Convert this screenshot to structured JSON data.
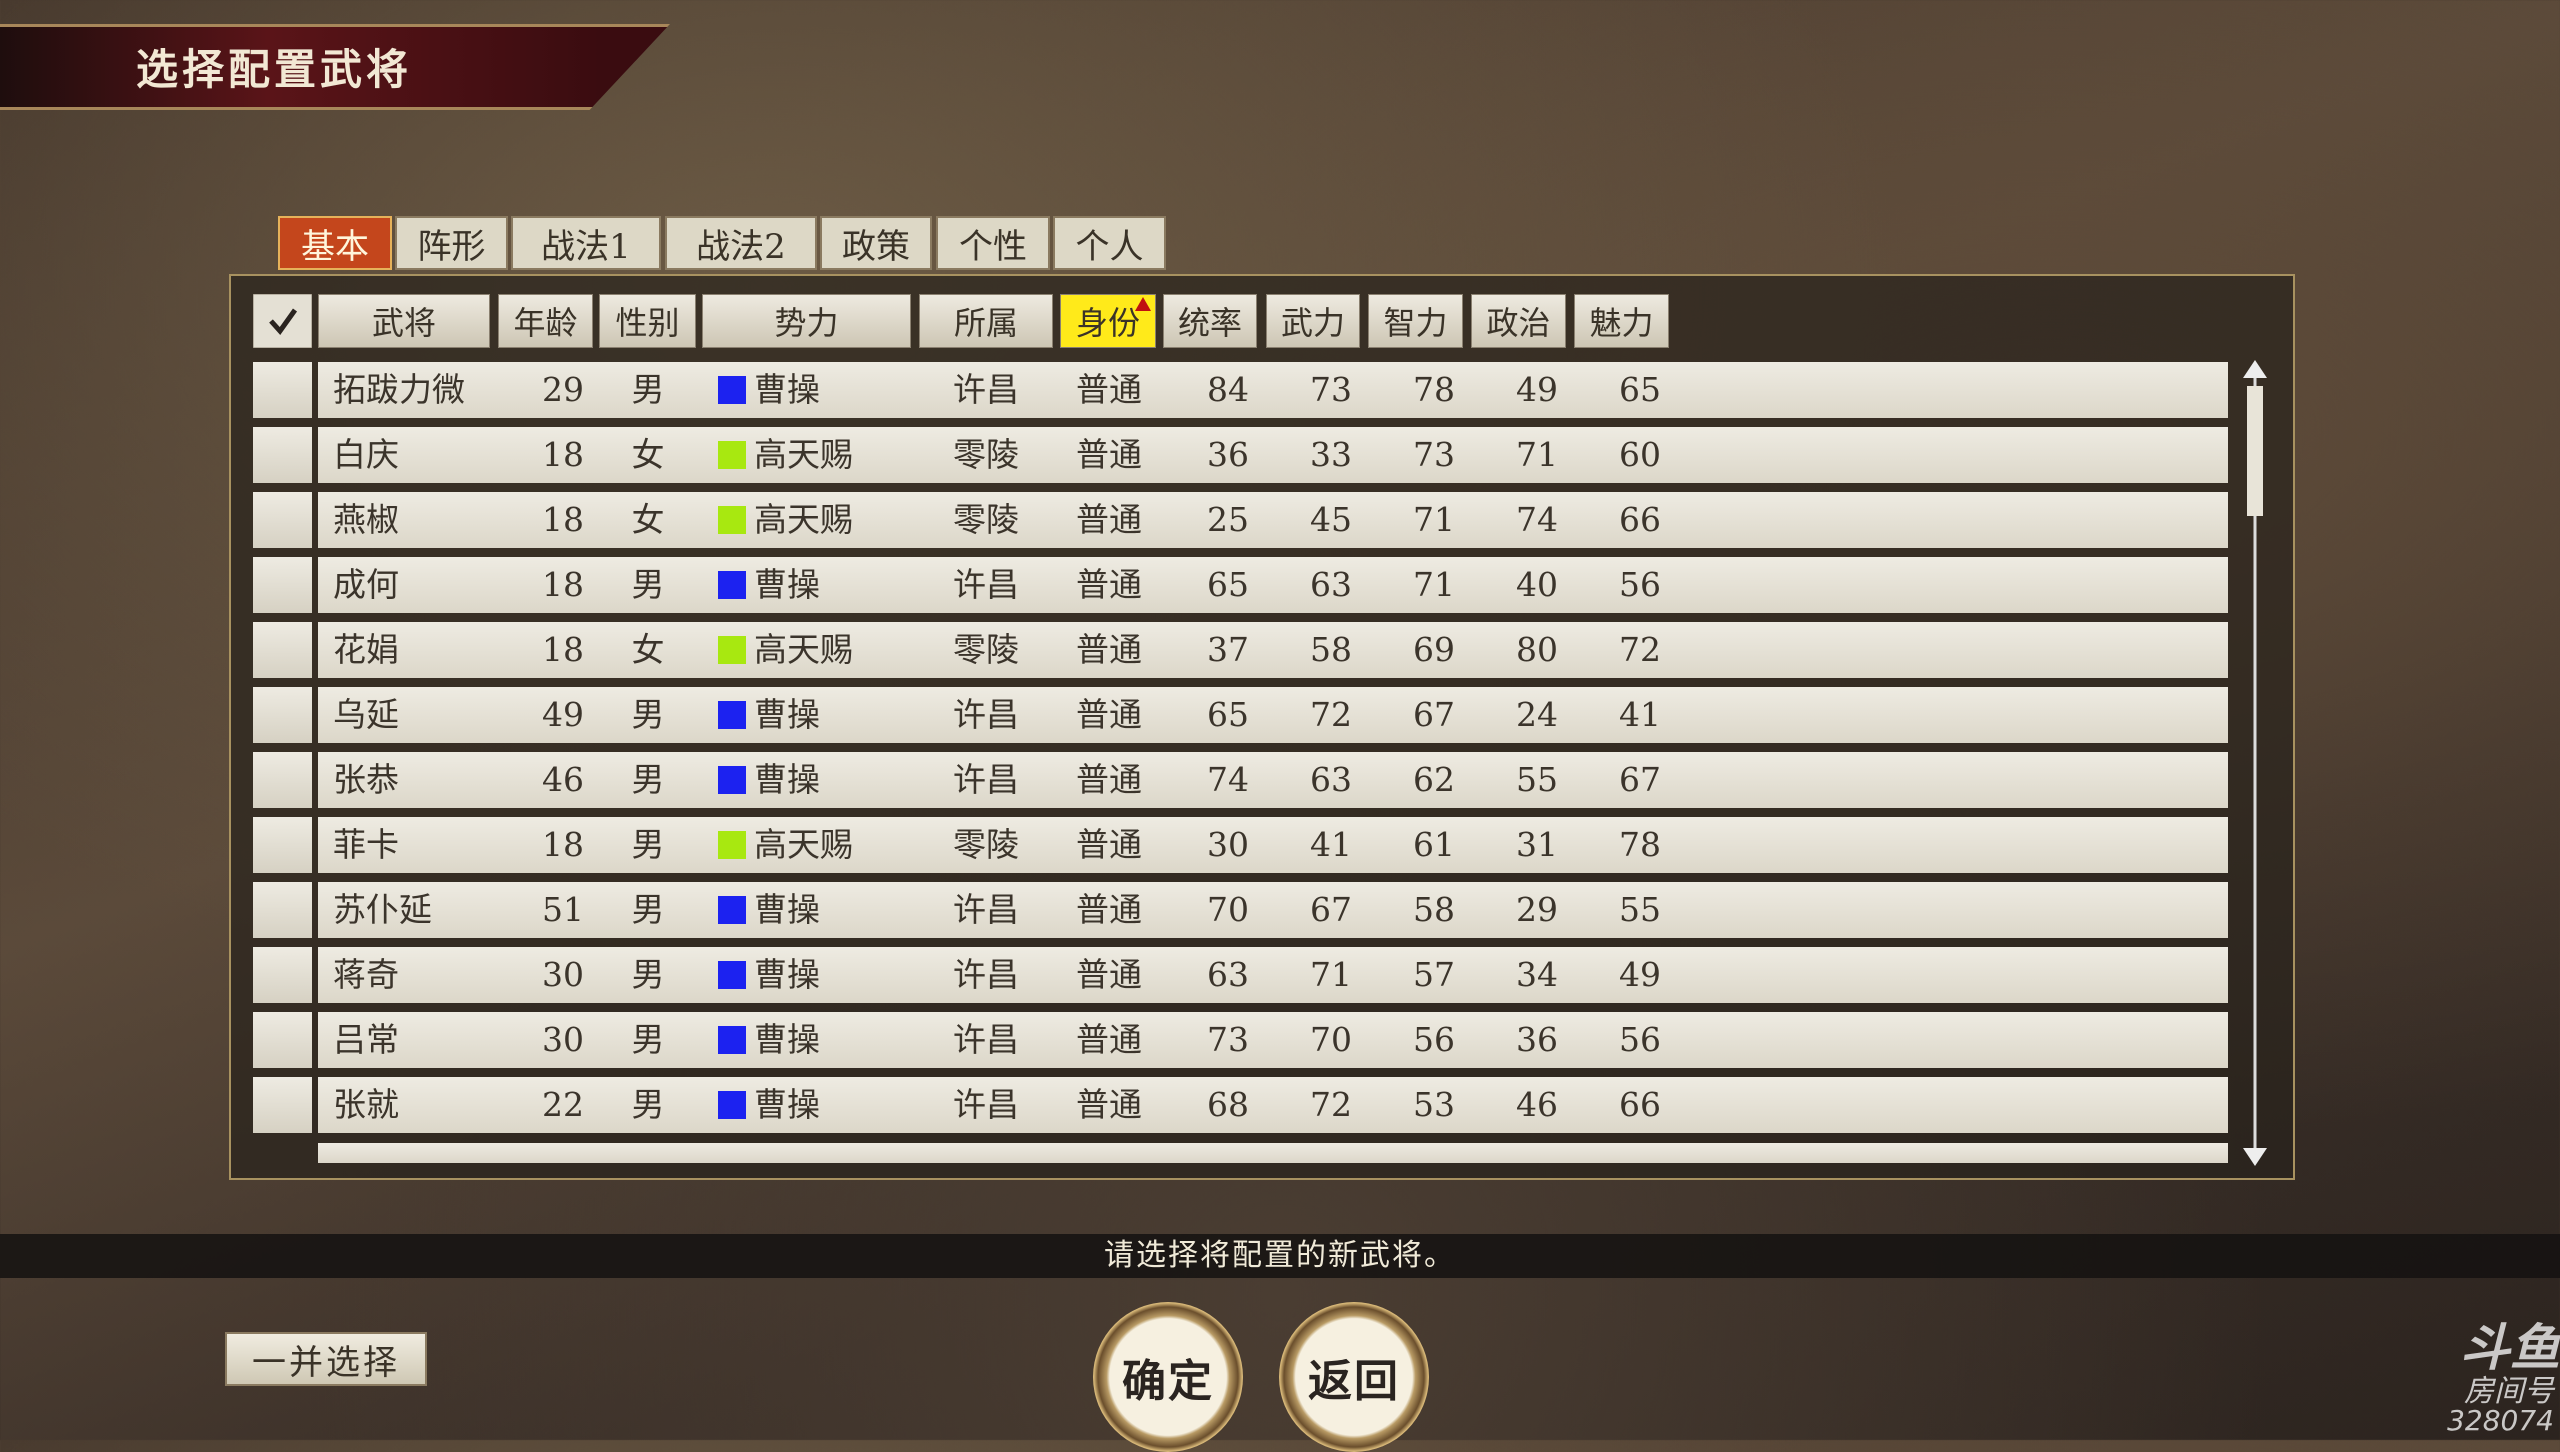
{
  "header": {
    "title": "选择配置武将"
  },
  "tabs": [
    "基本",
    "阵形",
    "战法1",
    "战法2",
    "政策",
    "个性",
    "个人"
  ],
  "active_tab": 0,
  "table": {
    "columns": [
      "武将",
      "年龄",
      "性别",
      "势力",
      "所属",
      "身份",
      "统率",
      "武力",
      "智力",
      "政治",
      "魅力"
    ],
    "sorted_column": 5,
    "faction_colors": {
      "曹操": "#1c22f0",
      "高天赐": "#a8e810"
    },
    "rows": [
      [
        "拓跋力微",
        29,
        "男",
        "曹操",
        "许昌",
        "普通",
        84,
        73,
        78,
        49,
        65
      ],
      [
        "白庆",
        18,
        "女",
        "高天赐",
        "零陵",
        "普通",
        36,
        33,
        73,
        71,
        60
      ],
      [
        "燕椒",
        18,
        "女",
        "高天赐",
        "零陵",
        "普通",
        25,
        45,
        71,
        74,
        66
      ],
      [
        "成何",
        18,
        "男",
        "曹操",
        "许昌",
        "普通",
        65,
        63,
        71,
        40,
        56
      ],
      [
        "花娟",
        18,
        "女",
        "高天赐",
        "零陵",
        "普通",
        37,
        58,
        69,
        80,
        72
      ],
      [
        "乌延",
        49,
        "男",
        "曹操",
        "许昌",
        "普通",
        65,
        72,
        67,
        24,
        41
      ],
      [
        "张恭",
        46,
        "男",
        "曹操",
        "许昌",
        "普通",
        74,
        63,
        62,
        55,
        67
      ],
      [
        "菲卡",
        18,
        "男",
        "高天赐",
        "零陵",
        "普通",
        30,
        41,
        61,
        31,
        78
      ],
      [
        "苏仆延",
        51,
        "男",
        "曹操",
        "许昌",
        "普通",
        70,
        67,
        58,
        29,
        55
      ],
      [
        "蒋奇",
        30,
        "男",
        "曹操",
        "许昌",
        "普通",
        63,
        71,
        57,
        34,
        49
      ],
      [
        "吕常",
        30,
        "男",
        "曹操",
        "许昌",
        "普通",
        73,
        70,
        56,
        36,
        56
      ],
      [
        "张就",
        22,
        "男",
        "曹操",
        "许昌",
        "普通",
        68,
        72,
        53,
        46,
        66
      ]
    ]
  },
  "message": "请选择将配置的新武将。",
  "buttons": {
    "select_all": "一并选择",
    "confirm": "确定",
    "back": "返回"
  },
  "watermark": {
    "brand": "斗鱼",
    "room_label": "房间号",
    "room_number": "328074"
  }
}
